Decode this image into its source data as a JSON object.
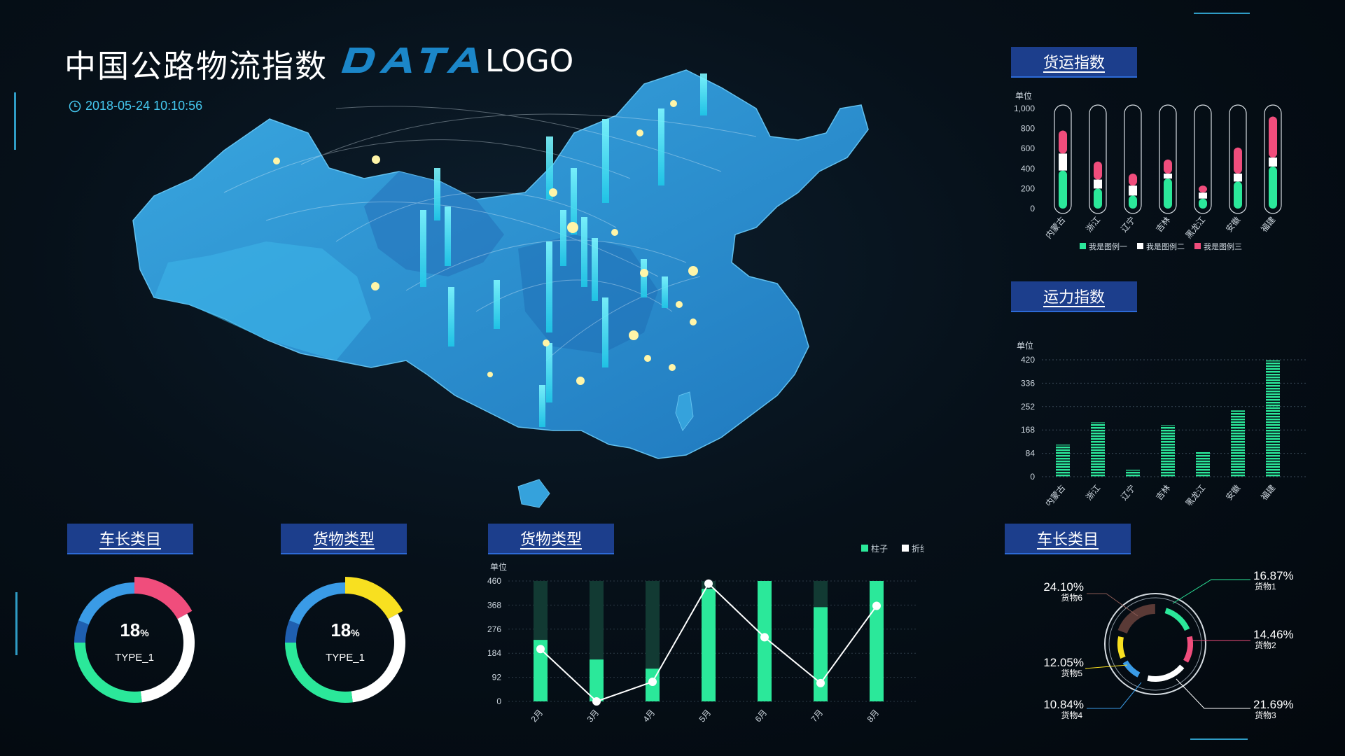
{
  "header": {
    "title": "中国公路物流指数",
    "logo_text": "LOGO",
    "datetime": "2018-05-24 10:10:56"
  },
  "colors": {
    "green": "#2be89a",
    "pink": "#f04d7c",
    "white": "#ffffff",
    "blue": "#2f8be0",
    "yellow": "#f8e020",
    "map_blue": "#2a8fd0",
    "cyan": "#3ef0ff",
    "panel_tag": "#1c3e8c"
  },
  "panels": {
    "freight_index": {
      "title": "货运指数"
    },
    "capacity_index": {
      "title": "运力指数"
    },
    "vehicle_length_left": {
      "title": "车长类目"
    },
    "goods_type_left": {
      "title": "货物类型"
    },
    "goods_type_mid": {
      "title": "货物类型"
    },
    "vehicle_length_right": {
      "title": "车长类目"
    }
  },
  "donut_left": {
    "percent": "18",
    "unit": "%",
    "label": "TYPE_1",
    "segments": [
      {
        "color": "#f04d7c",
        "value": 0.17
      },
      {
        "color": "#ffffff",
        "value": 0.31
      },
      {
        "color": "#2be89a",
        "value": 0.27
      },
      {
        "color": "#1f5fb0",
        "value": 0.06
      },
      {
        "color": "#3a9be6",
        "value": 0.19
      }
    ]
  },
  "donut_mid": {
    "percent": "18",
    "unit": "%",
    "label": "TYPE_1",
    "segments": [
      {
        "color": "#f8e020",
        "value": 0.17
      },
      {
        "color": "#ffffff",
        "value": 0.31
      },
      {
        "color": "#2be89a",
        "value": 0.27
      },
      {
        "color": "#1f5fb0",
        "value": 0.06
      },
      {
        "color": "#3a9be6",
        "value": 0.19
      }
    ]
  },
  "chart_data": [
    {
      "type": "bar",
      "title": "货运指数",
      "ylabel": "单位",
      "ylim": [
        0,
        1000
      ],
      "yticks": [
        "0",
        "200",
        "400",
        "600",
        "800",
        "1,000"
      ],
      "categories": [
        "内蒙古",
        "浙江",
        "辽宁",
        "吉林",
        "黑龙江",
        "安徽",
        "福建"
      ],
      "series": [
        {
          "name": "我是图例一",
          "color": "#2be89a",
          "values": [
            380,
            200,
            130,
            300,
            100,
            270,
            420
          ]
        },
        {
          "name": "我是图例二",
          "color": "#ffffff",
          "values": [
            170,
            90,
            100,
            50,
            60,
            80,
            90
          ]
        },
        {
          "name": "我是图例三",
          "color": "#f04d7c",
          "values": [
            230,
            180,
            120,
            140,
            70,
            260,
            410
          ]
        }
      ],
      "legend": "bottom"
    },
    {
      "type": "bar",
      "title": "运力指数",
      "ylabel": "单位",
      "ylim": [
        0,
        420
      ],
      "yticks": [
        "0",
        "84",
        "168",
        "252",
        "336",
        "420"
      ],
      "categories": [
        "内蒙古",
        "浙江",
        "辽宁",
        "吉林",
        "黑龙江",
        "安徽",
        "福建"
      ],
      "values": [
        115,
        195,
        25,
        185,
        88,
        238,
        418
      ],
      "grid": true
    },
    {
      "type": "bar",
      "title": "货物类型",
      "ylabel": "单位",
      "ylim": [
        0,
        460
      ],
      "yticks": [
        "0",
        "92",
        "184",
        "276",
        "368",
        "460"
      ],
      "categories": [
        "2月",
        "3月",
        "4月",
        "5月",
        "6月",
        "7月",
        "8月"
      ],
      "series": [
        {
          "name": "柱子",
          "type": "bar",
          "color": "#2be89a",
          "values": [
            235,
            160,
            125,
            430,
            460,
            360,
            460
          ]
        },
        {
          "name": "折线",
          "type": "line",
          "color": "#ffffff",
          "values": [
            200,
            0,
            75,
            450,
            245,
            70,
            365
          ]
        }
      ],
      "legend": "top-right"
    },
    {
      "type": "pie",
      "title": "车长类目",
      "slices": [
        {
          "name": "货物1",
          "percent": "16.87%",
          "value": 16.87,
          "color": "#2be89a"
        },
        {
          "name": "货物2",
          "percent": "14.46%",
          "value": 14.46,
          "color": "#f04d7c"
        },
        {
          "name": "货物3",
          "percent": "21.69%",
          "value": 21.69,
          "color": "#ffffff"
        },
        {
          "name": "货物4",
          "percent": "10.84%",
          "value": 10.84,
          "color": "#3a9be6"
        },
        {
          "name": "货物5",
          "percent": "12.05%",
          "value": 12.05,
          "color": "#f8e020"
        },
        {
          "name": "货物6",
          "percent": "24.10%",
          "value": 24.1,
          "color": "#5a3a36"
        }
      ]
    }
  ]
}
